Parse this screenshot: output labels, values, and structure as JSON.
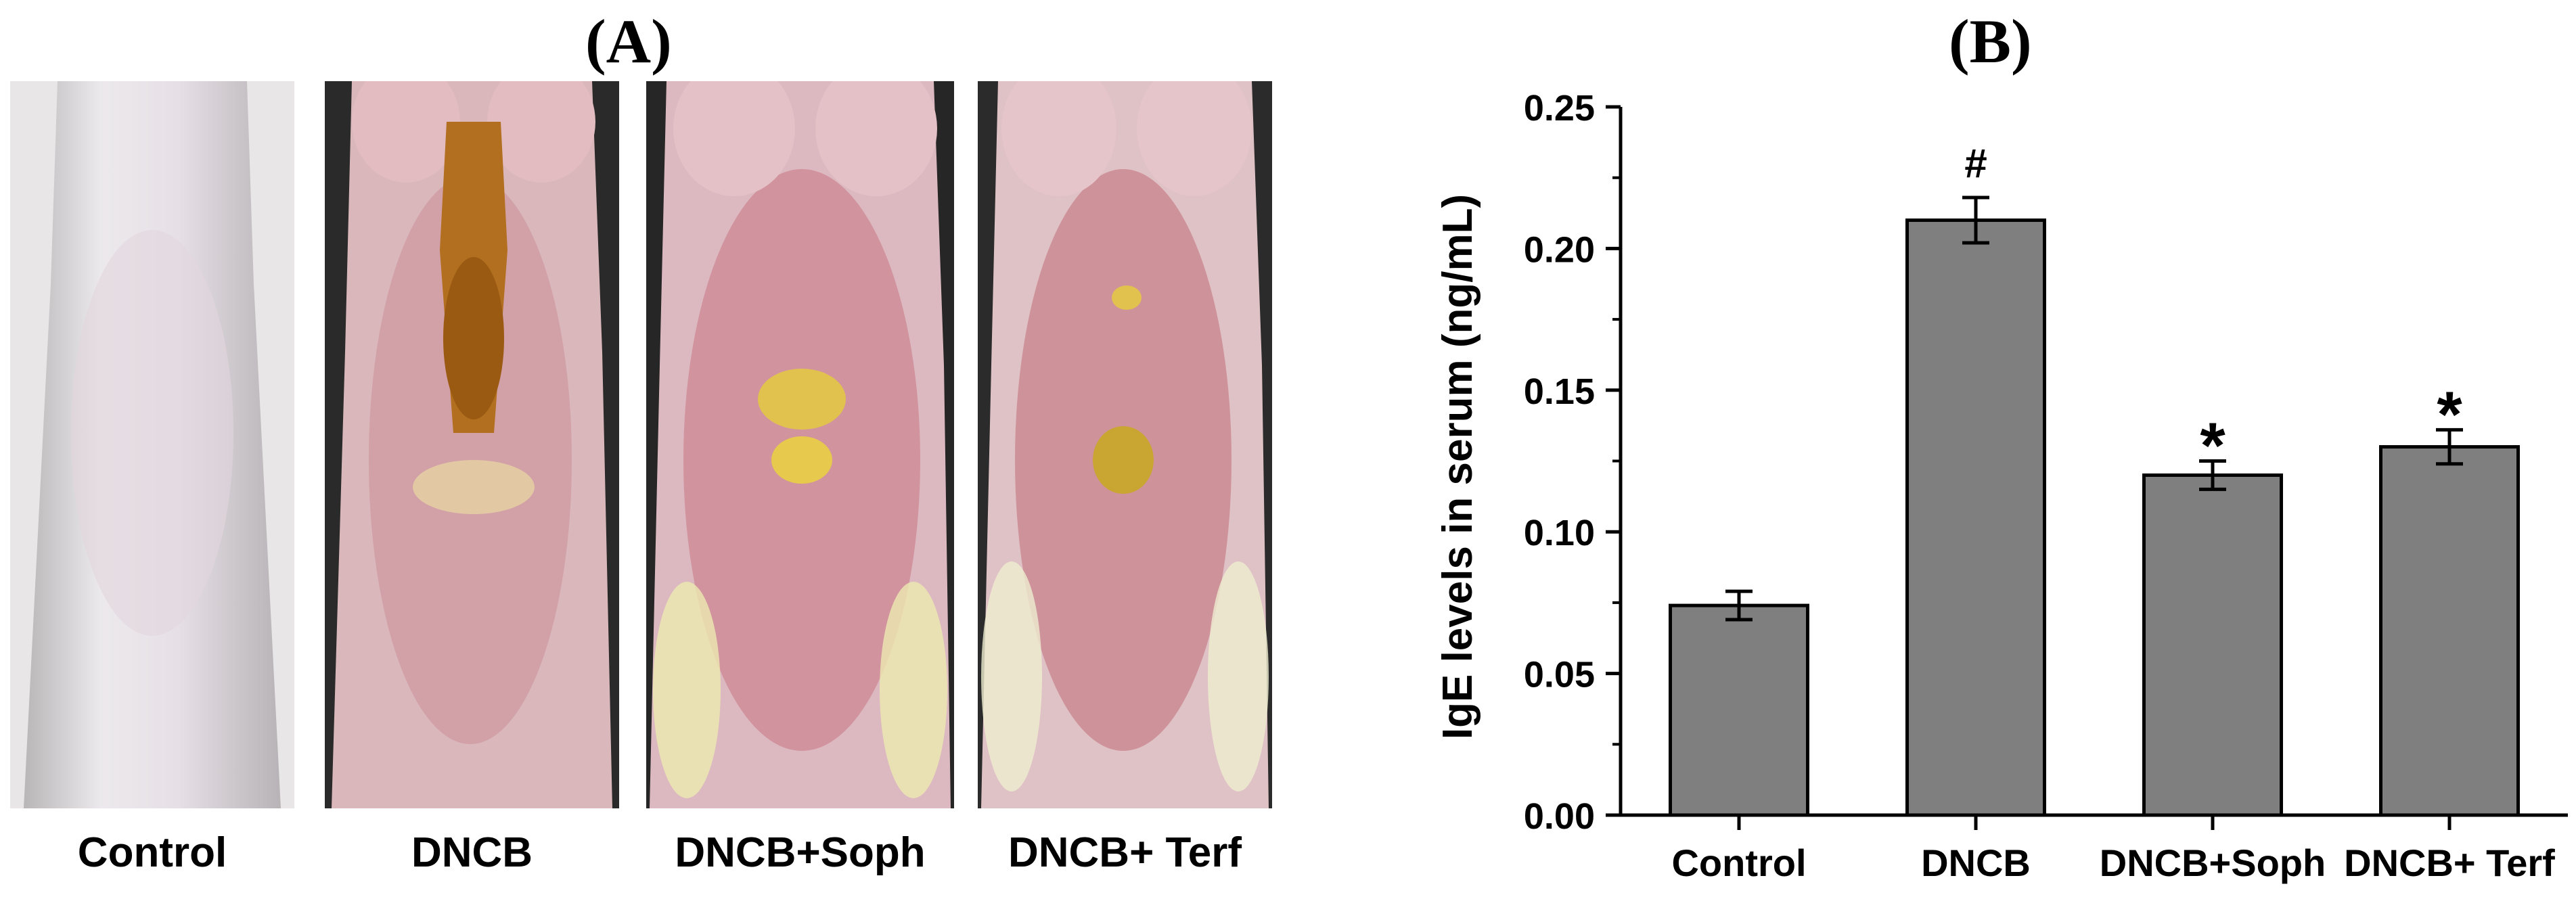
{
  "panel_a": {
    "letter": "(A)",
    "photos": [
      {
        "label": "Control",
        "icon": "mouse-back-healthy"
      },
      {
        "label": "DNCB",
        "icon": "mouse-back-severe-lesion"
      },
      {
        "label": "DNCB+Soph",
        "icon": "mouse-back-mild-lesion"
      },
      {
        "label": "DNCB+ Terf",
        "icon": "mouse-back-mild-lesion"
      }
    ]
  },
  "panel_b": {
    "letter": "(B)"
  },
  "chart_data": {
    "type": "bar",
    "title": "",
    "categories": [
      "Control",
      "DNCB",
      "DNCB+Soph",
      "DNCB+ Terf"
    ],
    "values": [
      0.074,
      0.21,
      0.12,
      0.13
    ],
    "errors": [
      0.005,
      0.008,
      0.005,
      0.006
    ],
    "annotations": [
      "",
      "#",
      "*",
      "*"
    ],
    "xlabel": "",
    "ylabel": "IgE levels in serum (ng/mL)",
    "ylim": [
      0,
      0.25
    ],
    "yticks": [
      "0.00",
      "0.05",
      "0.10",
      "0.15",
      "0.20",
      "0.25"
    ],
    "bar_color": "#7f7f7f",
    "grid": false,
    "legend": "none"
  }
}
